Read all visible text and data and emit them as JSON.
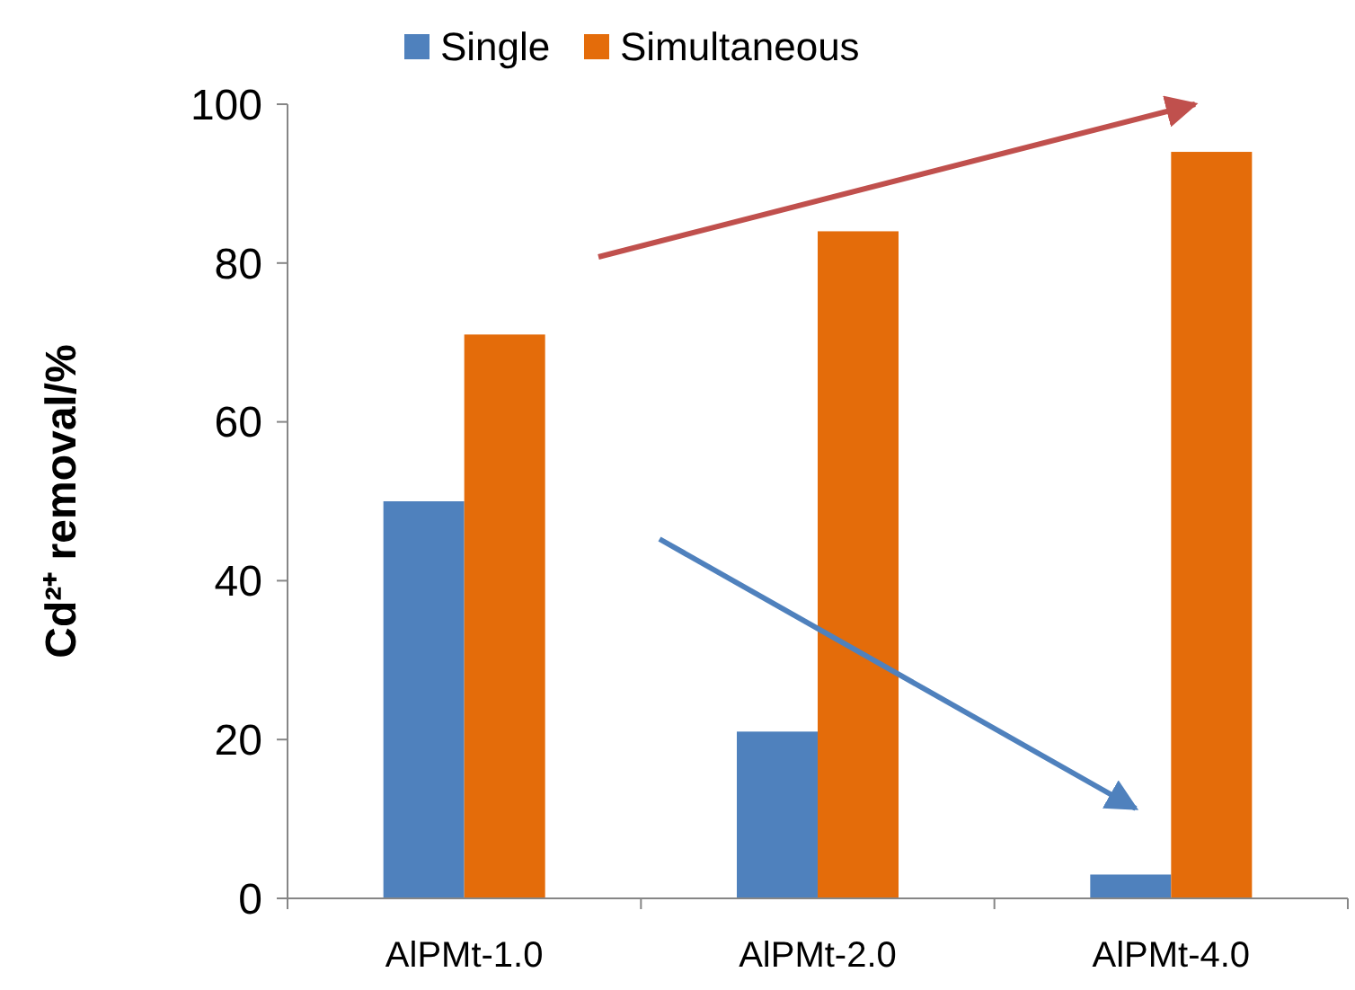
{
  "chart_data": {
    "type": "bar",
    "ylabel": "Cd²⁺ removal/%",
    "categories": [
      "AlPMt-1.0",
      "AlPMt-2.0",
      "AlPMt-4.0"
    ],
    "series": [
      {
        "name": "Single",
        "color": "#4f81bd",
        "values": [
          50,
          21,
          3
        ]
      },
      {
        "name": "Simultaneous",
        "color": "#e46c0a",
        "values": [
          71,
          84,
          94
        ]
      }
    ],
    "ylim": [
      0,
      100
    ],
    "yticks": [
      0,
      20,
      40,
      60,
      80,
      100
    ],
    "grid": false,
    "legend": "top"
  }
}
